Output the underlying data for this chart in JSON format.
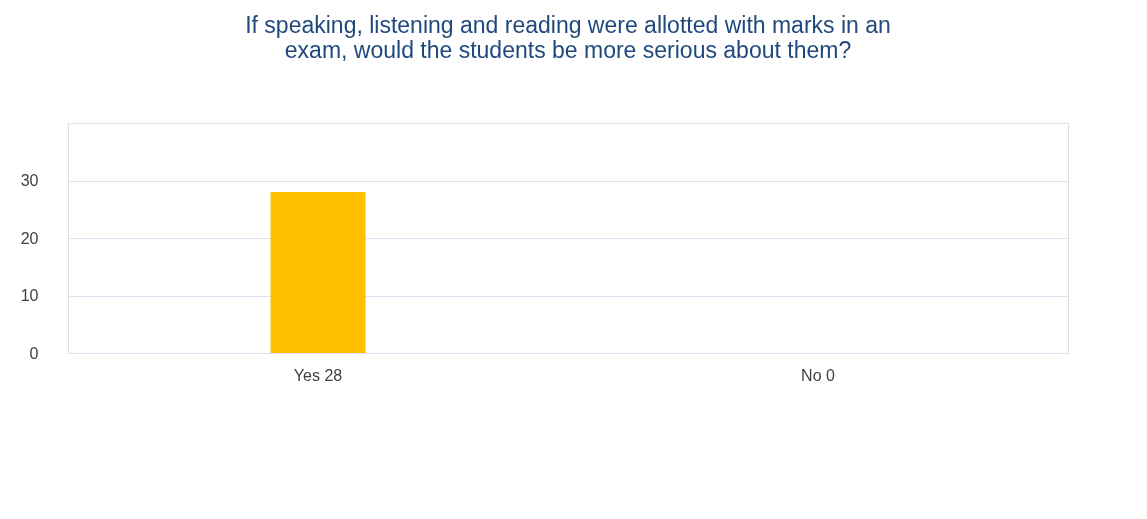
{
  "chart_data": {
    "type": "bar",
    "title": "If speaking, listening and reading were allotted with marks in an exam, would the students be more serious about them?",
    "categories": [
      "Yes 28",
      "No 0"
    ],
    "values": [
      28,
      0
    ],
    "colors": [
      "#ffc000",
      "#3a6496"
    ],
    "ylim": [
      0,
      40
    ],
    "yticks": [
      0,
      10,
      20,
      30,
      {
        "value": 40,
        "label": null
      }
    ],
    "grid": "y",
    "legend": false
  }
}
